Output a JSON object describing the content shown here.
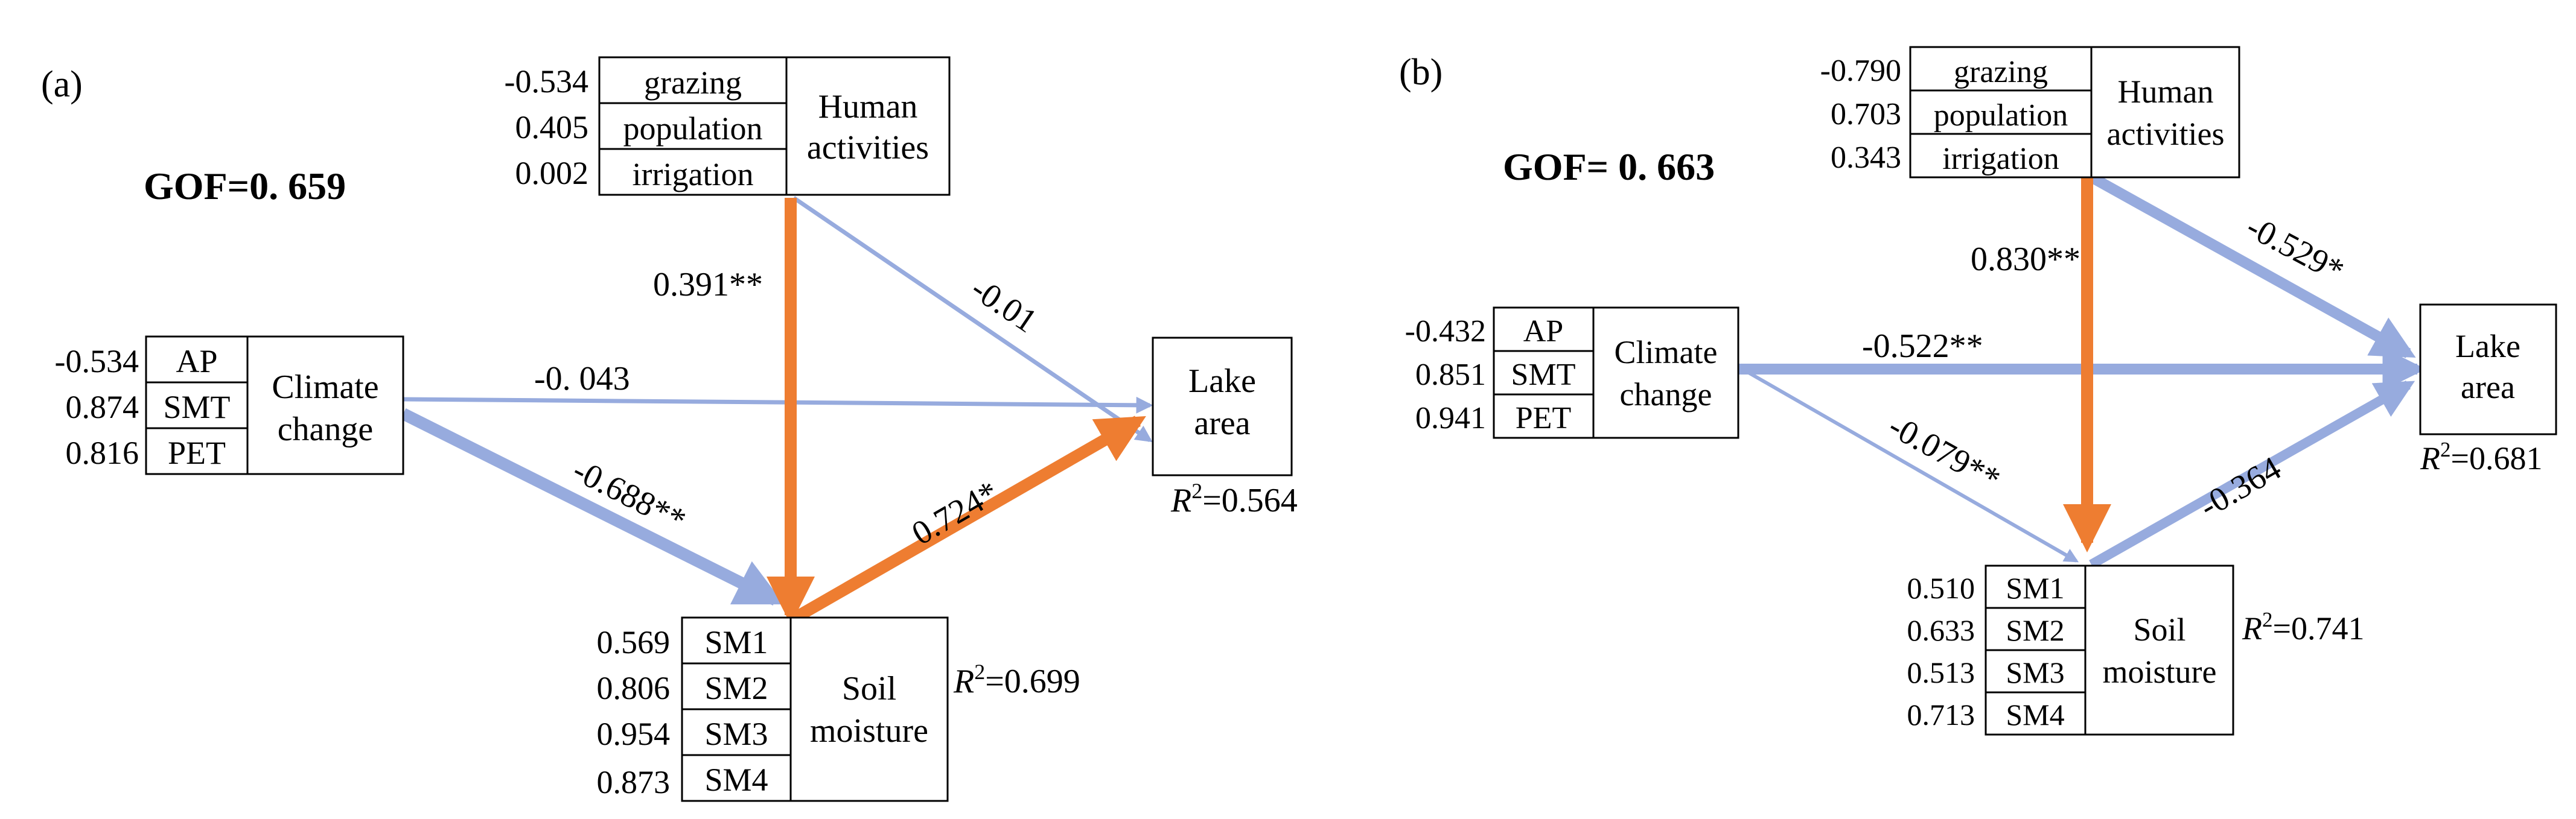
{
  "colors": {
    "blue_arrow": "#97abde",
    "orange_arrow": "#ee7d31",
    "text": "#000000",
    "box_border": "#000000"
  },
  "panels": [
    {
      "label": "(a)",
      "gof": "GOF=0. 659",
      "human_activities": {
        "name_line1": "Human",
        "name_line2": "activities",
        "indicators": [
          {
            "name": "grazing",
            "value": "-0.534"
          },
          {
            "name": "population",
            "value": "0.405"
          },
          {
            "name": "irrigation",
            "value": "0.002"
          }
        ]
      },
      "climate_change": {
        "name_line1": "Climate",
        "name_line2": "change",
        "indicators": [
          {
            "name": "AP",
            "value": "-0.534"
          },
          {
            "name": "SMT",
            "value": "0.874"
          },
          {
            "name": "PET",
            "value": "0.816"
          }
        ]
      },
      "lake_area": {
        "name_line1": "Lake",
        "name_line2": "area",
        "r2": "=0.564"
      },
      "soil_moisture": {
        "name_line1": "Soil",
        "name_line2": "moisture",
        "r2": "=0.699",
        "indicators": [
          {
            "name": "SM1",
            "value": "0.569"
          },
          {
            "name": "SM2",
            "value": "0.806"
          },
          {
            "name": "SM3",
            "value": "0.954"
          },
          {
            "name": "SM4",
            "value": "0.873"
          }
        ]
      },
      "paths": {
        "human_to_soil": "0.391**",
        "human_to_lake": "-0.01",
        "climate_to_lake": "-0. 043",
        "climate_to_soil": "-0.688**",
        "soil_to_lake": "0.724*"
      }
    },
    {
      "label": "(b)",
      "gof": "GOF= 0. 663",
      "human_activities": {
        "name_line1": "Human",
        "name_line2": "activities",
        "indicators": [
          {
            "name": "grazing",
            "value": "-0.790"
          },
          {
            "name": "population",
            "value": "0.703"
          },
          {
            "name": "irrigation",
            "value": "0.343"
          }
        ]
      },
      "climate_change": {
        "name_line1": "Climate",
        "name_line2": "change",
        "indicators": [
          {
            "name": "AP",
            "value": "-0.432"
          },
          {
            "name": "SMT",
            "value": "0.851"
          },
          {
            "name": "PET",
            "value": "0.941"
          }
        ]
      },
      "lake_area": {
        "name_line1": "Lake",
        "name_line2": "area",
        "r2": "=0.681"
      },
      "soil_moisture": {
        "name_line1": "Soil",
        "name_line2": "moisture",
        "r2": "=0.741",
        "indicators": [
          {
            "name": "SM1",
            "value": "0.510"
          },
          {
            "name": "SM2",
            "value": "0.633"
          },
          {
            "name": "SM3",
            "value": "0.513"
          },
          {
            "name": "SM4",
            "value": "0.713"
          }
        ]
      },
      "paths": {
        "human_to_soil": "0.830**",
        "human_to_lake": "-0.529*",
        "climate_to_lake": "-0.522**",
        "climate_to_soil": "-0.079**",
        "soil_to_lake": "-0.364"
      }
    }
  ]
}
